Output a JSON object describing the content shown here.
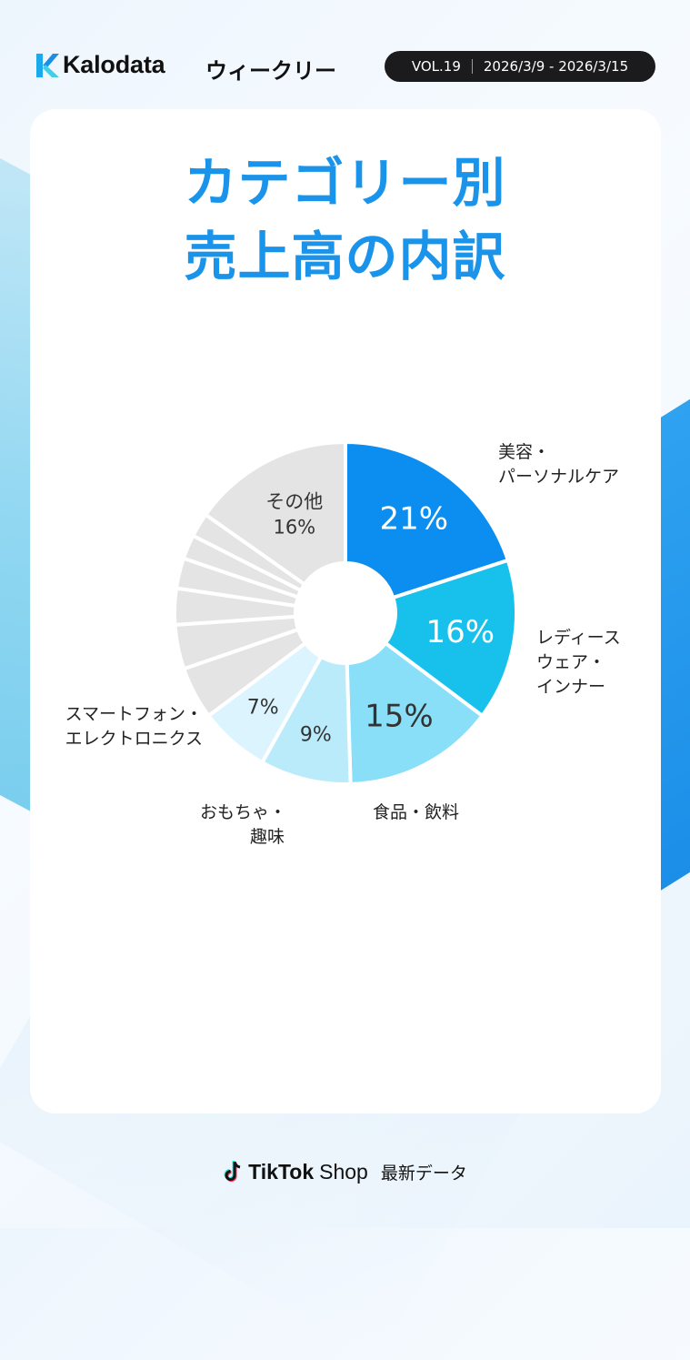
{
  "header": {
    "brand": "Kalodata",
    "weekly": "ウィークリー",
    "vol": "VOL.19",
    "date_range": "2026/3/9 - 2026/3/15"
  },
  "title": {
    "line1": "カテゴリー別",
    "line2": "売上高の内訳"
  },
  "colors": {
    "title": "#1a94ea",
    "beauty": "#0b8ef0",
    "ladies": "#18c1eb",
    "food": "#88dff7",
    "toys": "#b9ebfa",
    "electronics": "#dcf4fd",
    "other": "#e4e4e4"
  },
  "chart_data": {
    "type": "pie",
    "donut": true,
    "slices": [
      {
        "name": "美容・パーソナルケア",
        "label_lines": [
          "美容・",
          "パーソナルケア"
        ],
        "value": 21,
        "value_label": "21%",
        "color": "#0b8ef0"
      },
      {
        "name": "レディースウェア・インナー",
        "label_lines": [
          "レディース",
          "ウェア・",
          "インナー"
        ],
        "value": 16,
        "value_label": "16%",
        "color": "#18c1eb"
      },
      {
        "name": "食品・飲料",
        "label_lines": [
          "食品・飲料"
        ],
        "value": 15,
        "value_label": "15%",
        "color": "#88dff7"
      },
      {
        "name": "おもちゃ・趣味",
        "label_lines": [
          "おもちゃ・",
          "趣味"
        ],
        "value": 9,
        "value_label": "9%",
        "color": "#b9ebfa"
      },
      {
        "name": "スマートフォン・エレクトロニクス",
        "label_lines": [
          "スマートフォン・",
          "エレクトロニクス"
        ],
        "value": 7,
        "value_label": "7%",
        "color": "#dcf4fd"
      },
      {
        "name": "unlabeled-1",
        "value": 5.2,
        "color": "#e4e4e4"
      },
      {
        "name": "unlabeled-2",
        "value": 4.4,
        "color": "#e4e4e4"
      },
      {
        "name": "unlabeled-3",
        "value": 3.6,
        "color": "#e4e4e4"
      },
      {
        "name": "unlabeled-4",
        "value": 3.0,
        "color": "#e4e4e4"
      },
      {
        "name": "unlabeled-5",
        "value": 2.4,
        "color": "#e4e4e4"
      },
      {
        "name": "unlabeled-6",
        "value": 2.4,
        "color": "#e4e4e4"
      },
      {
        "name": "その他",
        "label_lines": [
          "その他",
          "16%"
        ],
        "value": 16,
        "color": "#e4e4e4"
      }
    ]
  },
  "footer": {
    "brand": "TikTok",
    "shop": "Shop",
    "latest": "最新データ"
  }
}
